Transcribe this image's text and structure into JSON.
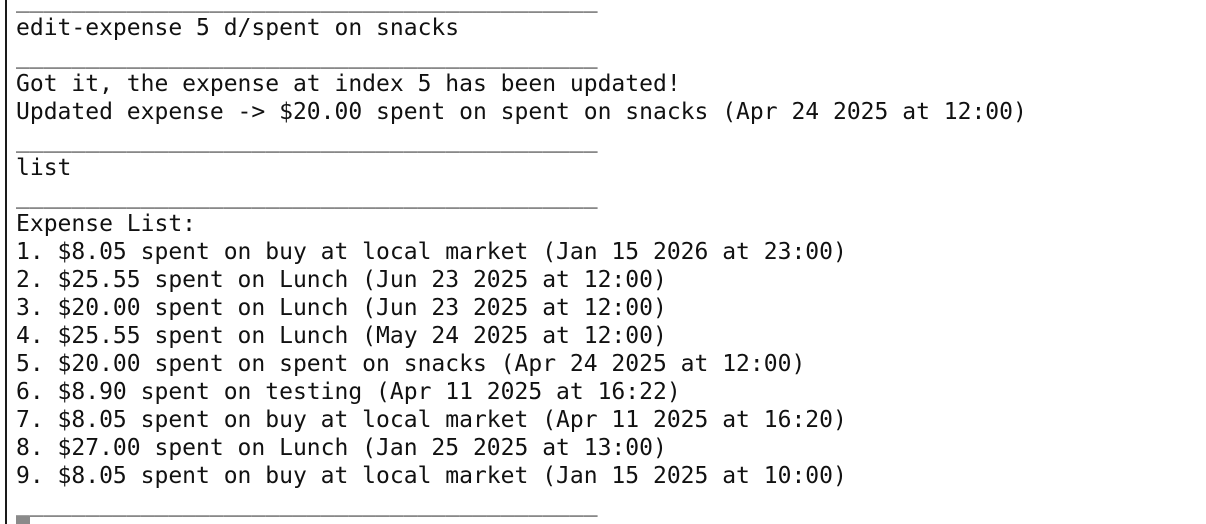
{
  "terminal": {
    "lines": [
      "__________________________________________",
      "edit-expense 5 d/spent on snacks",
      "__________________________________________",
      "Got it, the expense at index 5 has been updated!",
      "Updated expense -> $20.00 spent on spent on snacks (Apr 24 2025 at 12:00)",
      "__________________________________________",
      "list",
      "__________________________________________",
      "Expense List:",
      "1. $8.05 spent on buy at local market (Jan 15 2026 at 23:00)",
      "2. $25.55 spent on Lunch (Jun 23 2025 at 12:00)",
      "3. $20.00 spent on Lunch (Jun 23 2025 at 12:00)",
      "4. $25.55 spent on Lunch (May 24 2025 at 12:00)",
      "5. $20.00 spent on spent on snacks (Apr 24 2025 at 12:00)",
      "6. $8.90 spent on testing (Apr 11 2025 at 16:22)",
      "7. $8.05 spent on buy at local market (Apr 11 2025 at 16:20)",
      "8. $27.00 spent on Lunch (Jan 25 2025 at 13:00)",
      "9. $8.05 spent on buy at local market (Jan 15 2025 at 10:00)",
      "__________________________________________"
    ]
  }
}
